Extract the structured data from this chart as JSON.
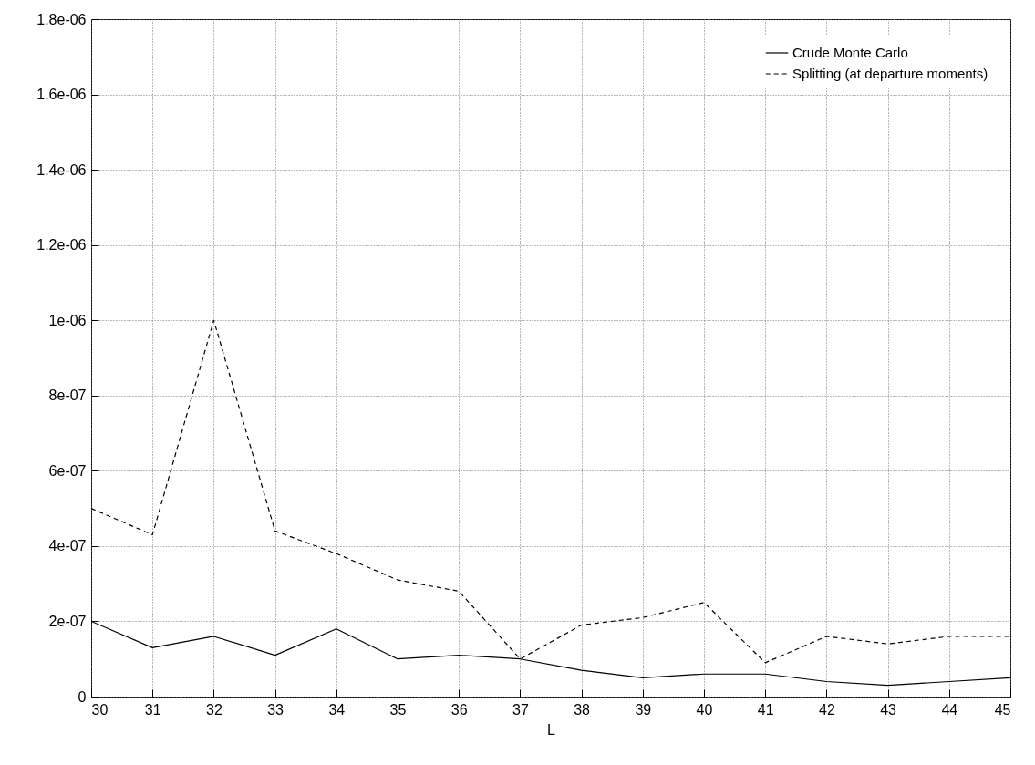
{
  "chart_data": {
    "type": "line",
    "xlabel": "L",
    "x": [
      30,
      31,
      32,
      33,
      34,
      35,
      36,
      37,
      38,
      39,
      40,
      41,
      42,
      43,
      44,
      45
    ],
    "series": [
      {
        "name": "Crude Monte Carlo",
        "color": "#000000",
        "line_style": "solid",
        "values": [
          2e-07,
          1.3e-07,
          1.6e-07,
          1.1e-07,
          1.8e-07,
          1e-07,
          1.1e-07,
          1e-07,
          7e-08,
          5e-08,
          6e-08,
          6e-08,
          4e-08,
          3e-08,
          4e-08,
          5e-08
        ]
      },
      {
        "name": "Splitting (at departure moments)",
        "color": "#000000",
        "line_style": "dashed",
        "values": [
          5e-07,
          4.3e-07,
          1e-06,
          4.4e-07,
          3.8e-07,
          3.1e-07,
          2.8e-07,
          1e-07,
          1.9e-07,
          2.1e-07,
          2.5e-07,
          9e-08,
          1.6e-07,
          1.4e-07,
          1.6e-07,
          1.6e-07
        ]
      }
    ],
    "xlim": [
      30,
      45
    ],
    "xticks": [
      30,
      31,
      32,
      33,
      34,
      35,
      36,
      37,
      38,
      39,
      40,
      41,
      42,
      43,
      44,
      45
    ],
    "ylim": [
      0,
      1.8e-06
    ],
    "yticks": [
      0,
      {
        "value": 2e-07,
        "label": "2e-07"
      },
      {
        "value": 4e-07,
        "label": "4e-07"
      },
      {
        "value": 6e-07,
        "label": "6e-07"
      },
      {
        "value": 8e-07,
        "label": "8e-07"
      },
      {
        "value": 1e-06,
        "label": "1e-06"
      },
      {
        "value": 1.2e-06,
        "label": "1.2e-06"
      },
      {
        "value": 1.4e-06,
        "label": "1.4e-06"
      },
      {
        "value": 1.6e-06,
        "label": "1.6e-06"
      },
      {
        "value": 1.8e-06,
        "label": "1.8e-06"
      }
    ],
    "grid": true,
    "legend": "top right"
  }
}
